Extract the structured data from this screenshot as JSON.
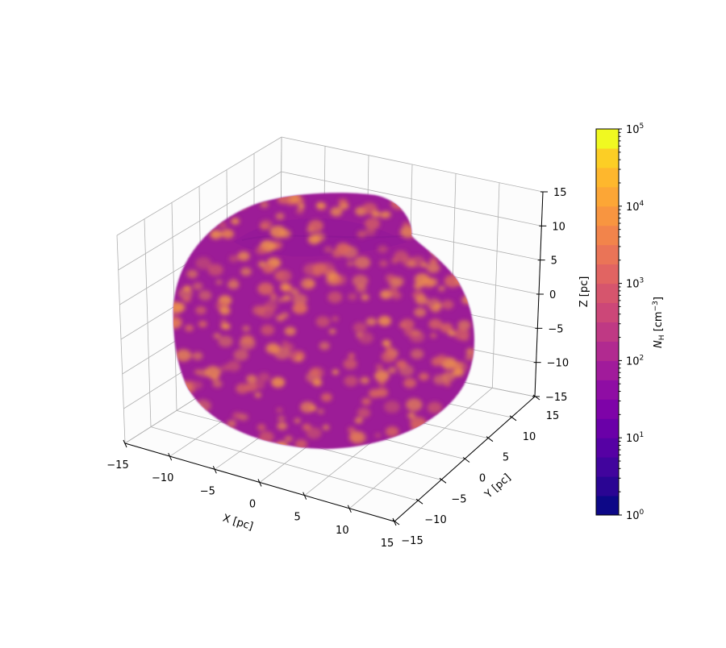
{
  "chart_data": {
    "type": "scatter3d",
    "title": "",
    "xlabel": "X [pc]",
    "ylabel": "Y [pc]",
    "zlabel": "Z [pc]",
    "xlim": [
      -15,
      15
    ],
    "ylim": [
      -15,
      15
    ],
    "zlim": [
      -15,
      15
    ],
    "grid": true,
    "x_ticks": [
      "−15",
      "−10",
      "−5",
      "0",
      "5",
      "10",
      "15"
    ],
    "y_ticks": [
      "−15",
      "−10",
      "−5",
      "0",
      "5",
      "10",
      "15"
    ],
    "z_ticks": [
      "−15",
      "−10",
      "−5",
      "0",
      "5",
      "10",
      "15"
    ],
    "tick_values": [
      -15,
      -10,
      -5,
      0,
      5,
      10,
      15
    ],
    "description_of_marks": "dense point cloud forming a shell with a cavity at the top, colored by density",
    "dominant_value_color": "#9c1c97",
    "spot_color": "#f0944a",
    "colorbar": {
      "label": "N_H [cm^-3]",
      "label_main": "N",
      "label_sub": "H",
      "label_unit_pre": " [cm",
      "label_unit_sup": "−3",
      "label_unit_post": "]",
      "scale": "log",
      "range": [
        1,
        100000
      ],
      "colormap": "plasma",
      "levels": 20,
      "ticks": [
        {
          "base": "10",
          "exp": "0",
          "value": 1
        },
        {
          "base": "10",
          "exp": "1",
          "value": 10
        },
        {
          "base": "10",
          "exp": "2",
          "value": 100
        },
        {
          "base": "10",
          "exp": "3",
          "value": 1000
        },
        {
          "base": "10",
          "exp": "4",
          "value": 10000
        },
        {
          "base": "10",
          "exp": "5",
          "value": 100000
        }
      ]
    }
  }
}
